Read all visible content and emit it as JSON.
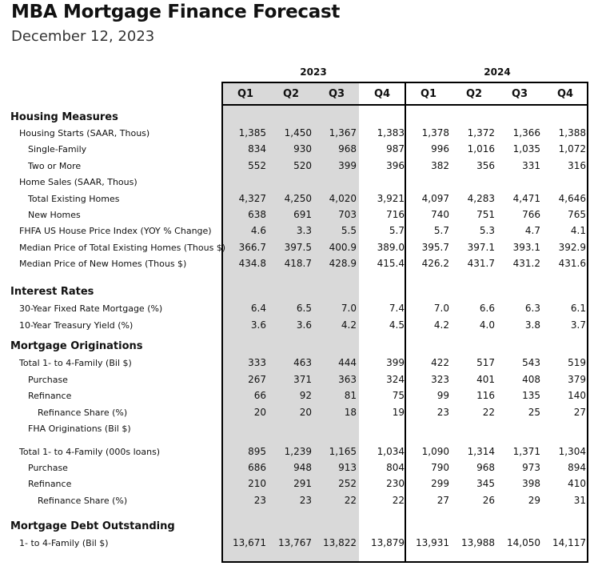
{
  "title": "MBA Mortgage Finance Forecast",
  "subtitle": "December 12, 2023",
  "years": [
    "2023",
    "2024"
  ],
  "quarters": [
    "Q1",
    "Q2",
    "Q3",
    "Q4",
    "Q1",
    "Q2",
    "Q3",
    "Q4"
  ],
  "rows": [
    {
      "type": "section",
      "label": "Housing Measures"
    },
    {
      "type": "data",
      "label": "Housing Starts (SAAR, Thous)",
      "indent": 1,
      "values": [
        "1,385",
        "1,450",
        "1,367",
        "1,383",
        "1,378",
        "1,372",
        "1,366",
        "1,388"
      ]
    },
    {
      "type": "data",
      "label": "Single-Family",
      "indent": 2,
      "values": [
        "834",
        "930",
        "968",
        "987",
        "996",
        "1,016",
        "1,035",
        "1,072"
      ]
    },
    {
      "type": "data",
      "label": "Two or More",
      "indent": 2,
      "values": [
        "552",
        "520",
        "399",
        "396",
        "382",
        "356",
        "331",
        "316"
      ]
    },
    {
      "type": "data",
      "label": "Home Sales (SAAR, Thous)",
      "indent": 1,
      "values": []
    },
    {
      "type": "data",
      "label": "Total Existing Homes",
      "indent": 2,
      "values": [
        "4,327",
        "4,250",
        "4,020",
        "3,921",
        "4,097",
        "4,283",
        "4,471",
        "4,646"
      ]
    },
    {
      "type": "data",
      "label": "New Homes",
      "indent": 2,
      "values": [
        "638",
        "691",
        "703",
        "716",
        "740",
        "751",
        "766",
        "765"
      ]
    },
    {
      "type": "data",
      "label": "FHFA US House Price Index (YOY % Change)",
      "indent": 1,
      "values": [
        "4.6",
        "3.3",
        "5.5",
        "5.7",
        "5.7",
        "5.3",
        "4.7",
        "4.1"
      ]
    },
    {
      "type": "data",
      "label": "Median Price of Total Existing Homes (Thous $)",
      "indent": 1,
      "values": [
        "366.7",
        "397.5",
        "400.9",
        "389.0",
        "395.7",
        "397.1",
        "393.1",
        "392.9"
      ]
    },
    {
      "type": "data",
      "label": "Median Price of New Homes (Thous $)",
      "indent": 1,
      "values": [
        "434.8",
        "418.7",
        "428.9",
        "415.4",
        "426.2",
        "431.7",
        "431.2",
        "431.6"
      ]
    },
    {
      "type": "section",
      "label": "Interest Rates"
    },
    {
      "type": "data",
      "label": "30-Year Fixed Rate Mortgage (%)",
      "indent": 1,
      "values": [
        "6.4",
        "6.5",
        "7.0",
        "7.4",
        "7.0",
        "6.6",
        "6.3",
        "6.1"
      ]
    },
    {
      "type": "data",
      "label": "10-Year Treasury Yield (%)",
      "indent": 1,
      "values": [
        "3.6",
        "3.6",
        "4.2",
        "4.5",
        "4.2",
        "4.0",
        "3.8",
        "3.7"
      ]
    },
    {
      "type": "section",
      "label": "Mortgage Originations"
    },
    {
      "type": "data",
      "label": "Total 1- to 4-Family (Bil $)",
      "indent": 1,
      "values": [
        "333",
        "463",
        "444",
        "399",
        "422",
        "517",
        "543",
        "519"
      ]
    },
    {
      "type": "data",
      "label": "Purchase",
      "indent": 2,
      "values": [
        "267",
        "371",
        "363",
        "324",
        "323",
        "401",
        "408",
        "379"
      ]
    },
    {
      "type": "data",
      "label": "Refinance",
      "indent": 2,
      "values": [
        "66",
        "92",
        "81",
        "75",
        "99",
        "116",
        "135",
        "140"
      ]
    },
    {
      "type": "data",
      "label": "Refinance Share (%)",
      "indent": 3,
      "values": [
        "20",
        "20",
        "18",
        "19",
        "23",
        "22",
        "25",
        "27"
      ]
    },
    {
      "type": "data",
      "label": "FHA Originations (Bil $)",
      "indent": 2,
      "values": []
    },
    {
      "type": "data",
      "label": "Total 1- to 4-Family (000s loans)",
      "indent": 1,
      "values": [
        "895",
        "1,239",
        "1,165",
        "1,034",
        "1,090",
        "1,314",
        "1,371",
        "1,304"
      ]
    },
    {
      "type": "data",
      "label": "Purchase",
      "indent": 2,
      "values": [
        "686",
        "948",
        "913",
        "804",
        "790",
        "968",
        "973",
        "894"
      ]
    },
    {
      "type": "data",
      "label": "Refinance",
      "indent": 2,
      "values": [
        "210",
        "291",
        "252",
        "230",
        "299",
        "345",
        "398",
        "410"
      ]
    },
    {
      "type": "data",
      "label": "Refinance Share (%)",
      "indent": 3,
      "values": [
        "23",
        "23",
        "22",
        "22",
        "27",
        "26",
        "29",
        "31"
      ]
    },
    {
      "type": "section",
      "label": "Mortgage Debt Outstanding"
    },
    {
      "type": "data",
      "label": "1- to 4-Family (Bil $)",
      "indent": 1,
      "values": [
        "13,671",
        "13,767",
        "13,822",
        "13,879",
        "13,931",
        "13,988",
        "14,050",
        "14,117"
      ]
    }
  ]
}
